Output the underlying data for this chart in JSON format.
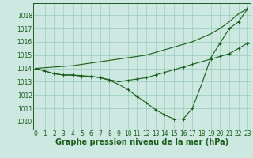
{
  "background_color": "#cce8e0",
  "grid_color": "#99ccbb",
  "line_color": "#1a5c1a",
  "xlabel": "Graphe pression niveau de la mer (hPa)",
  "xlabel_fontsize": 7,
  "tick_fontsize": 5.5,
  "yticks": [
    1010,
    1011,
    1012,
    1013,
    1014,
    1015,
    1016,
    1017,
    1018
  ],
  "xticks": [
    0,
    1,
    2,
    3,
    4,
    5,
    6,
    7,
    8,
    9,
    10,
    11,
    12,
    13,
    14,
    15,
    16,
    17,
    18,
    19,
    20,
    21,
    22,
    23
  ],
  "ylim": [
    1009.4,
    1018.9
  ],
  "xlim": [
    -0.3,
    23.3
  ],
  "line1_no_marker": {
    "x": [
      0,
      1,
      2,
      3,
      4,
      5,
      6,
      7,
      8,
      9,
      10,
      11,
      12,
      13,
      14,
      15,
      16,
      17,
      18,
      19,
      20,
      21,
      22,
      23
    ],
    "y": [
      1014.0,
      1014.05,
      1014.1,
      1014.15,
      1014.2,
      1014.3,
      1014.4,
      1014.5,
      1014.6,
      1014.7,
      1014.8,
      1014.9,
      1015.0,
      1015.2,
      1015.4,
      1015.6,
      1015.8,
      1016.0,
      1016.3,
      1016.6,
      1017.0,
      1017.5,
      1018.1,
      1018.5
    ]
  },
  "line2_marker": {
    "x": [
      0,
      1,
      2,
      3,
      4,
      5,
      6,
      7,
      8,
      9,
      10,
      11,
      12,
      13,
      14,
      15,
      16,
      17,
      18,
      19,
      20,
      21,
      22,
      23
    ],
    "y": [
      1014.0,
      1013.8,
      1013.6,
      1013.5,
      1013.5,
      1013.4,
      1013.4,
      1013.3,
      1013.1,
      1012.8,
      1012.4,
      1011.9,
      1011.4,
      1010.9,
      1010.5,
      1010.2,
      1010.2,
      1011.0,
      1012.8,
      1014.8,
      1015.9,
      1017.0,
      1017.5,
      1018.5
    ]
  },
  "line3_marker": {
    "x": [
      0,
      1,
      2,
      3,
      4,
      5,
      6,
      7,
      8,
      9,
      10,
      11,
      12,
      13,
      14,
      15,
      16,
      17,
      18,
      19,
      20,
      21,
      22,
      23
    ],
    "y": [
      1014.0,
      1013.8,
      1013.6,
      1013.5,
      1013.5,
      1013.45,
      1013.4,
      1013.3,
      1013.15,
      1013.0,
      1013.1,
      1013.2,
      1013.3,
      1013.5,
      1013.7,
      1013.9,
      1014.1,
      1014.3,
      1014.5,
      1014.7,
      1014.9,
      1015.1,
      1015.5,
      1015.9
    ]
  }
}
